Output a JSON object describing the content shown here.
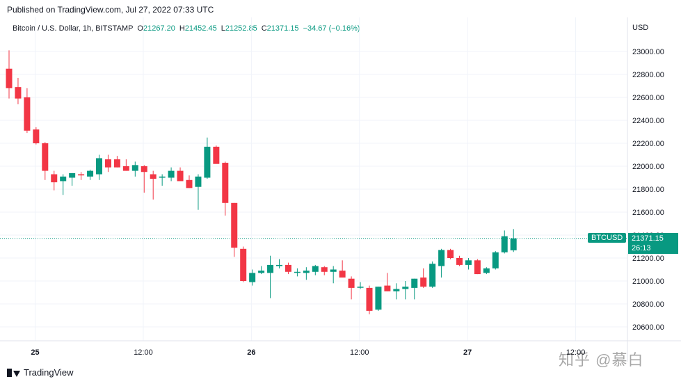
{
  "header": {
    "published": "Published on TradingView.com, Jul 27, 2022 07:33 UTC"
  },
  "legend": {
    "symbol": "Bitcoin / U.S. Dollar, 1h, BITSTAMP",
    "o_label": "O",
    "o_value": "21267.20",
    "h_label": "H",
    "h_value": "21452.45",
    "l_label": "L",
    "l_value": "21252.85",
    "c_label": "C",
    "c_value": "21371.15",
    "change": "−34.67 (−0.16%)"
  },
  "axis": {
    "currency": "USD"
  },
  "last_price": {
    "ticker": "BTCUSD",
    "price": "21371.15",
    "countdown": "26:13"
  },
  "footer": {
    "brand": "TradingView"
  },
  "watermark": "知乎 @慕白",
  "colors": {
    "up": "#089981",
    "down": "#f23645",
    "grid": "#f0f3fa",
    "axis_text": "#131722"
  },
  "chart_data": {
    "type": "candlestick",
    "title": "Bitcoin / U.S. Dollar, 1h, BITSTAMP",
    "ylabel": "USD",
    "ylim": [
      20500,
      23100
    ],
    "yticks": [
      20600,
      20800,
      21000,
      21200,
      21400,
      21600,
      21800,
      22000,
      22200,
      22400,
      22600,
      22800,
      23000
    ],
    "ytick_labels": [
      "20600.00",
      "20800.00",
      "21000.00",
      "21200.00",
      "21400.00",
      "21600.00",
      "21800.00",
      "22000.00",
      "22200.00",
      "22400.00",
      "22600.00",
      "22800.00",
      "23000.00"
    ],
    "xticks": [
      {
        "label": "25",
        "bold": true,
        "index": 2
      },
      {
        "label": "12:00",
        "bold": false,
        "index": 14
      },
      {
        "label": "26",
        "bold": true,
        "index": 26
      },
      {
        "label": "12:00",
        "bold": false,
        "index": 38
      },
      {
        "label": "27",
        "bold": true,
        "index": 50
      },
      {
        "label": "12:00",
        "bold": false,
        "index": 62
      }
    ],
    "last_price": 21371.15,
    "candles": [
      {
        "o": 22850,
        "h": 23010,
        "l": 22590,
        "c": 22680
      },
      {
        "o": 22690,
        "h": 22770,
        "l": 22540,
        "c": 22590
      },
      {
        "o": 22600,
        "h": 22680,
        "l": 22290,
        "c": 22310
      },
      {
        "o": 22320,
        "h": 22340,
        "l": 22190,
        "c": 22200
      },
      {
        "o": 22200,
        "h": 22210,
        "l": 21880,
        "c": 21960
      },
      {
        "o": 21930,
        "h": 21960,
        "l": 21790,
        "c": 21860
      },
      {
        "o": 21870,
        "h": 21930,
        "l": 21750,
        "c": 21910
      },
      {
        "o": 21900,
        "h": 21940,
        "l": 21830,
        "c": 21940
      },
      {
        "o": 21930,
        "h": 21950,
        "l": 21880,
        "c": 21920
      },
      {
        "o": 21910,
        "h": 21970,
        "l": 21880,
        "c": 21960
      },
      {
        "o": 21930,
        "h": 22100,
        "l": 21880,
        "c": 22070
      },
      {
        "o": 22060,
        "h": 22100,
        "l": 21950,
        "c": 21990
      },
      {
        "o": 22060,
        "h": 22090,
        "l": 21990,
        "c": 21990
      },
      {
        "o": 22000,
        "h": 22060,
        "l": 21960,
        "c": 21960
      },
      {
        "o": 21960,
        "h": 22040,
        "l": 21910,
        "c": 22010
      },
      {
        "o": 22000,
        "h": 22010,
        "l": 21770,
        "c": 21950
      },
      {
        "o": 21930,
        "h": 21960,
        "l": 21710,
        "c": 21890
      },
      {
        "o": 21900,
        "h": 21930,
        "l": 21830,
        "c": 21910
      },
      {
        "o": 21900,
        "h": 21990,
        "l": 21870,
        "c": 21960
      },
      {
        "o": 21960,
        "h": 21990,
        "l": 21880,
        "c": 21870
      },
      {
        "o": 21880,
        "h": 21920,
        "l": 21810,
        "c": 21810
      },
      {
        "o": 21820,
        "h": 21930,
        "l": 21620,
        "c": 21910
      },
      {
        "o": 21900,
        "h": 22250,
        "l": 21890,
        "c": 22170
      },
      {
        "o": 22170,
        "h": 22180,
        "l": 22030,
        "c": 22020
      },
      {
        "o": 22030,
        "h": 22040,
        "l": 21570,
        "c": 21680
      },
      {
        "o": 21680,
        "h": 21680,
        "l": 21210,
        "c": 21290
      },
      {
        "o": 21280,
        "h": 21300,
        "l": 20990,
        "c": 21000
      },
      {
        "o": 20990,
        "h": 21100,
        "l": 20960,
        "c": 21070
      },
      {
        "o": 21070,
        "h": 21130,
        "l": 21060,
        "c": 21090
      },
      {
        "o": 21070,
        "h": 21220,
        "l": 20850,
        "c": 21140
      },
      {
        "o": 21130,
        "h": 21190,
        "l": 21110,
        "c": 21140
      },
      {
        "o": 21140,
        "h": 21160,
        "l": 21060,
        "c": 21080
      },
      {
        "o": 21080,
        "h": 21110,
        "l": 21040,
        "c": 21080
      },
      {
        "o": 21070,
        "h": 21120,
        "l": 21010,
        "c": 21090
      },
      {
        "o": 21080,
        "h": 21140,
        "l": 21050,
        "c": 21130
      },
      {
        "o": 21120,
        "h": 21130,
        "l": 21050,
        "c": 21080
      },
      {
        "o": 21080,
        "h": 21130,
        "l": 20980,
        "c": 21100
      },
      {
        "o": 21090,
        "h": 21180,
        "l": 21030,
        "c": 21030
      },
      {
        "o": 21020,
        "h": 21040,
        "l": 20840,
        "c": 20940
      },
      {
        "o": 20950,
        "h": 20990,
        "l": 20930,
        "c": 20950
      },
      {
        "o": 20940,
        "h": 20960,
        "l": 20710,
        "c": 20740
      },
      {
        "o": 20750,
        "h": 20950,
        "l": 20740,
        "c": 20950
      },
      {
        "o": 20960,
        "h": 21070,
        "l": 20910,
        "c": 20910
      },
      {
        "o": 20910,
        "h": 20980,
        "l": 20840,
        "c": 20930
      },
      {
        "o": 20930,
        "h": 21000,
        "l": 20840,
        "c": 20950
      },
      {
        "o": 20940,
        "h": 21020,
        "l": 20840,
        "c": 21020
      },
      {
        "o": 21030,
        "h": 21110,
        "l": 20940,
        "c": 20950
      },
      {
        "o": 20950,
        "h": 21170,
        "l": 20940,
        "c": 21150
      },
      {
        "o": 21130,
        "h": 21280,
        "l": 21030,
        "c": 21270
      },
      {
        "o": 21270,
        "h": 21280,
        "l": 21190,
        "c": 21200
      },
      {
        "o": 21200,
        "h": 21220,
        "l": 21130,
        "c": 21140
      },
      {
        "o": 21140,
        "h": 21200,
        "l": 21100,
        "c": 21180
      },
      {
        "o": 21180,
        "h": 21190,
        "l": 21060,
        "c": 21060
      },
      {
        "o": 21070,
        "h": 21120,
        "l": 21060,
        "c": 21110
      },
      {
        "o": 21110,
        "h": 21260,
        "l": 21100,
        "c": 21250
      },
      {
        "o": 21250,
        "h": 21440,
        "l": 21240,
        "c": 21390
      },
      {
        "o": 21267.2,
        "h": 21452.45,
        "l": 21252.85,
        "c": 21371.15
      }
    ]
  }
}
